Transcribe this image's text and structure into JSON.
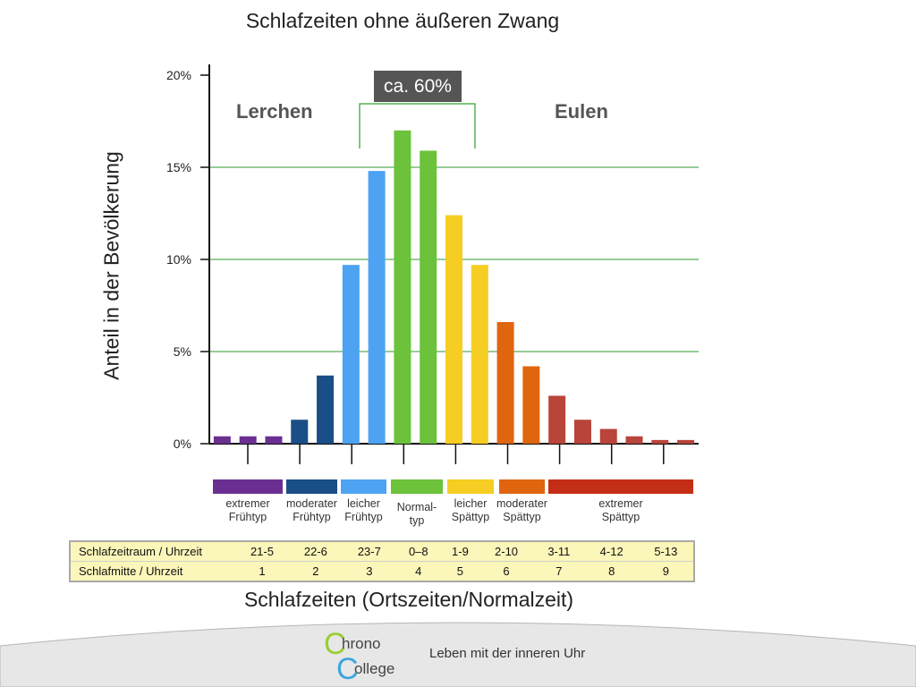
{
  "chart_data": {
    "type": "bar",
    "title": "Schlafzeiten ohne äußeren Zwang",
    "xlabel": "Schlafzeiten (Ortszeiten/Normalzeit)",
    "ylabel": "Anteil in der Bevölkerung",
    "ylim": [
      0,
      20
    ],
    "yticks": [
      "0%",
      "5%",
      "10%",
      "15%",
      "20%"
    ],
    "grid": true,
    "values": [
      0.4,
      0.4,
      0.4,
      1.3,
      3.7,
      9.7,
      14.8,
      17.0,
      15.9,
      12.4,
      9.7,
      6.6,
      4.2,
      2.6,
      1.3,
      0.8,
      0.4,
      0.2,
      0.2
    ],
    "colors": [
      "#6b2f91",
      "#6b2f91",
      "#6b2f91",
      "#1a4e87",
      "#1a4e87",
      "#4da3f2",
      "#4da3f2",
      "#6cc23a",
      "#6cc23a",
      "#f6cd23",
      "#f6cd23",
      "#e0650f",
      "#e0650f",
      "#b8443a",
      "#b8443a",
      "#b8443a",
      "#b8443a",
      "#b8443a",
      "#b8443a"
    ],
    "groups": [
      {
        "label": "extremer Frühtyp",
        "color": "#6b2f91"
      },
      {
        "label": "moderater Frühtyp",
        "color": "#1a4e87"
      },
      {
        "label": "leicher Frühtyp",
        "color": "#4da3f2"
      },
      {
        "label": "Normal- typ",
        "color": "#6cc23a"
      },
      {
        "label": "leicher Spättyp",
        "color": "#f6cd23"
      },
      {
        "label": "moderater Spättyp",
        "color": "#e0650f"
      },
      {
        "label": "extremer Spättyp",
        "color": "#c42d16"
      }
    ],
    "annotations": {
      "lerchen": "Lerchen",
      "eulen": "Eulen",
      "callout": "ca. 60%"
    }
  },
  "table": {
    "rows": [
      {
        "label": "Schlafzeitraum / Uhrzeit",
        "cells": [
          "21-5",
          "22-6",
          "23-7",
          "0–8",
          "1-9",
          "2-10",
          "3-11",
          "4-12",
          "5-13"
        ]
      },
      {
        "label": "Schlafmitte / Uhrzeit",
        "cells": [
          "1",
          "2",
          "3",
          "4",
          "5",
          "6",
          "7",
          "8",
          "9"
        ]
      }
    ]
  },
  "footer": {
    "logo_line1": "hrono",
    "logo_line2": "ollege",
    "logo_letter": "C",
    "tagline": "Leben mit der inneren Uhr"
  }
}
